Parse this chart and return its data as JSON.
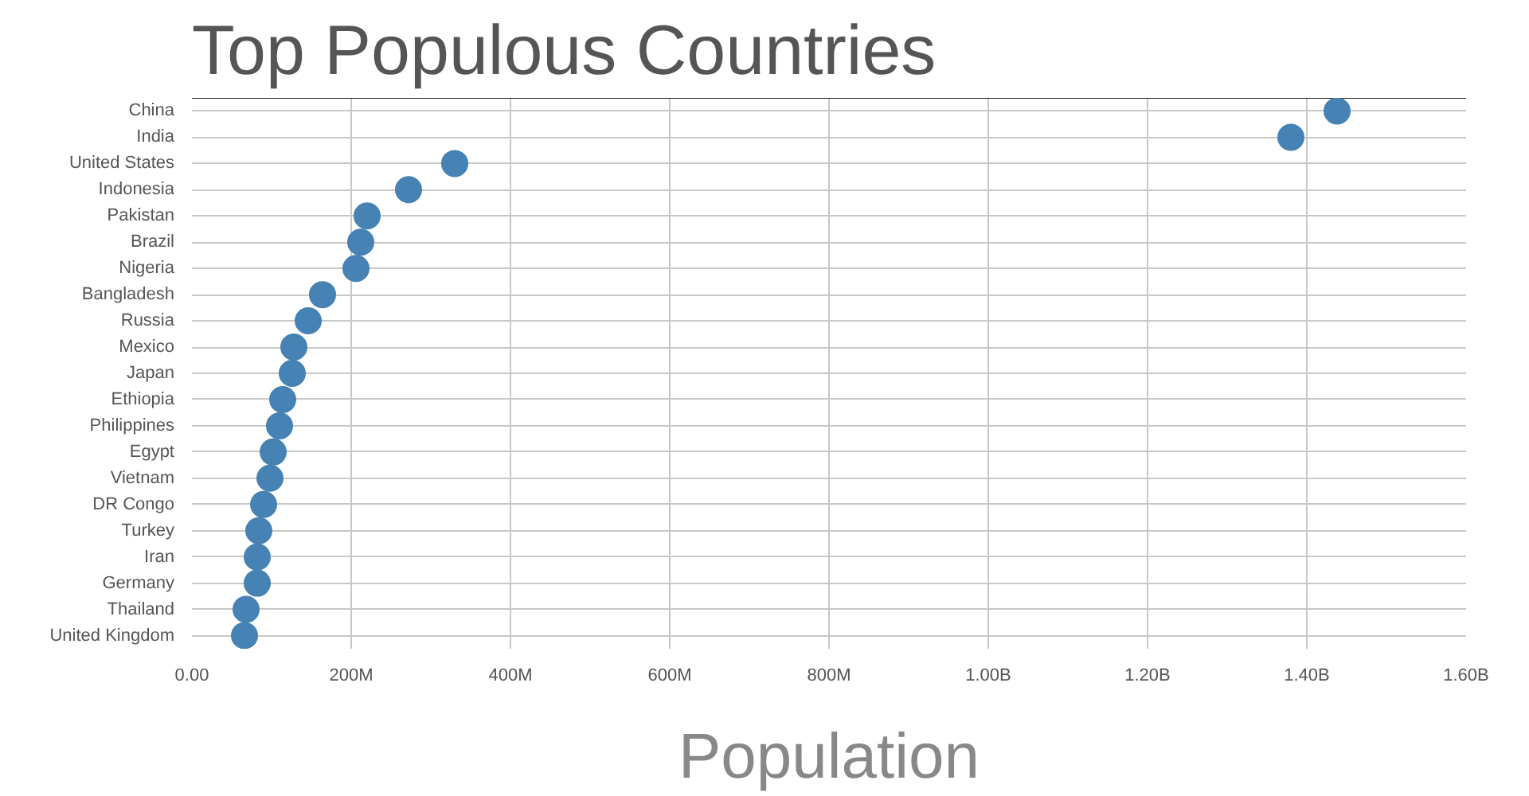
{
  "chart_data": {
    "type": "scatter",
    "title": "Top Populous Countries",
    "xlabel": "Population",
    "orientation": "horizontal",
    "categories": [
      "China",
      "India",
      "United States",
      "Indonesia",
      "Pakistan",
      "Brazil",
      "Nigeria",
      "Bangladesh",
      "Russia",
      "Mexico",
      "Japan",
      "Ethiopia",
      "Philippines",
      "Egypt",
      "Vietnam",
      "DR Congo",
      "Turkey",
      "Iran",
      "Germany",
      "Thailand",
      "United Kingdom"
    ],
    "values": [
      1438000000,
      1380000000,
      330000000,
      272000000,
      220000000,
      212000000,
      206000000,
      164000000,
      146000000,
      128000000,
      126000000,
      114000000,
      110000000,
      102000000,
      98000000,
      90000000,
      84000000,
      82000000,
      82000000,
      68000000,
      66000000
    ],
    "color": "#4682b4",
    "marker": "circle",
    "grid": true,
    "xlim": [
      0,
      1600000000
    ],
    "xticks": [
      {
        "value": 0,
        "label": "0.00"
      },
      {
        "value": 200000000,
        "label": "200M"
      },
      {
        "value": 400000000,
        "label": "400M"
      },
      {
        "value": 600000000,
        "label": "600M"
      },
      {
        "value": 800000000,
        "label": "800M"
      },
      {
        "value": 1000000000,
        "label": "1.00B"
      },
      {
        "value": 1200000000,
        "label": "1.20B"
      },
      {
        "value": 1400000000,
        "label": "1.40B"
      },
      {
        "value": 1600000000,
        "label": "1.60B"
      }
    ]
  }
}
